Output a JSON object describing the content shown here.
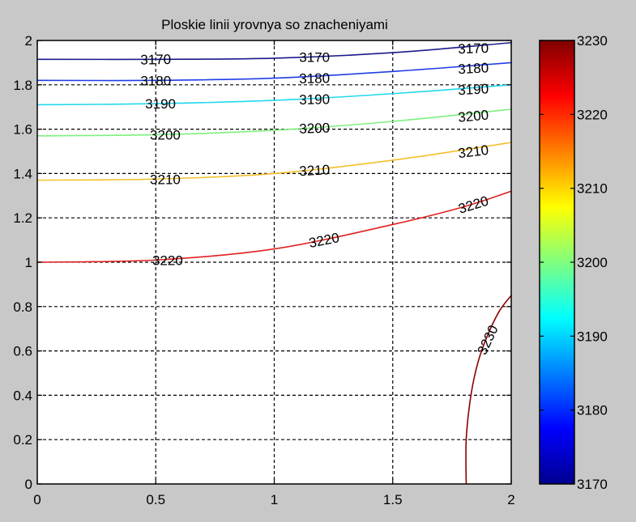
{
  "chart_data": {
    "type": "contour",
    "title": "Ploskie linii yrovnya so znacheniyami",
    "xlabel": "",
    "ylabel": "",
    "xlim": [
      0,
      2
    ],
    "ylim": [
      0,
      2
    ],
    "x_ticks": [
      "0",
      "0.5",
      "1",
      "1.5",
      "2"
    ],
    "y_ticks": [
      "0",
      "0.2",
      "0.4",
      "0.6",
      "0.8",
      "1",
      "1.2",
      "1.4",
      "1.6",
      "1.8",
      "2"
    ],
    "grid": true,
    "colormap": "jet",
    "colorbar": {
      "range": [
        3170,
        3230
      ],
      "ticks": [
        "3170",
        "3180",
        "3190",
        "3200",
        "3210",
        "3220",
        "3230"
      ],
      "placement": "right"
    },
    "levels": [
      {
        "level": "3170",
        "color": "#1a1a8c",
        "points": [
          [
            0,
            1.915
          ],
          [
            0.5,
            1.915
          ],
          [
            1,
            1.92
          ],
          [
            1.5,
            1.945
          ],
          [
            2,
            1.99
          ]
        ],
        "labels": [
          [
            0.5,
            1.915,
            -1
          ],
          [
            1.17,
            1.925,
            0
          ],
          [
            1.84,
            1.965,
            -2
          ]
        ]
      },
      {
        "level": "3180",
        "color": "#1f3de6",
        "points": [
          [
            0,
            1.82
          ],
          [
            0.5,
            1.82
          ],
          [
            1,
            1.83
          ],
          [
            1.5,
            1.86
          ],
          [
            2,
            1.9
          ]
        ],
        "labels": [
          [
            0.5,
            1.82,
            0
          ],
          [
            1.17,
            1.83,
            -1
          ],
          [
            1.84,
            1.875,
            -3
          ]
        ]
      },
      {
        "level": "3190",
        "color": "#22d8f0",
        "points": [
          [
            0,
            1.71
          ],
          [
            0.5,
            1.715
          ],
          [
            1,
            1.73
          ],
          [
            1.5,
            1.76
          ],
          [
            2,
            1.8
          ]
        ],
        "labels": [
          [
            0.52,
            1.715,
            0
          ],
          [
            1.17,
            1.735,
            -1
          ],
          [
            1.84,
            1.78,
            -3
          ]
        ]
      },
      {
        "level": "3200",
        "color": "#7ef07e",
        "points": [
          [
            0,
            1.57
          ],
          [
            0.5,
            1.575
          ],
          [
            1,
            1.595
          ],
          [
            1.5,
            1.635
          ],
          [
            2,
            1.69
          ]
        ],
        "labels": [
          [
            0.54,
            1.575,
            0
          ],
          [
            1.17,
            1.605,
            -2
          ],
          [
            1.84,
            1.66,
            -5
          ]
        ]
      },
      {
        "level": "3210",
        "color": "#f2c02a",
        "points": [
          [
            0,
            1.37
          ],
          [
            0.5,
            1.375
          ],
          [
            1,
            1.4
          ],
          [
            1.5,
            1.46
          ],
          [
            2,
            1.54
          ]
        ],
        "labels": [
          [
            0.54,
            1.375,
            0
          ],
          [
            1.17,
            1.415,
            -3
          ],
          [
            1.84,
            1.5,
            -7
          ]
        ]
      },
      {
        "level": "3220",
        "color": "#e02020",
        "points": [
          [
            0,
            1.0
          ],
          [
            0.5,
            1.01
          ],
          [
            1,
            1.06
          ],
          [
            1.5,
            1.17
          ],
          [
            1.8,
            1.25
          ],
          [
            2,
            1.32
          ]
        ],
        "labels": [
          [
            0.55,
            1.01,
            0
          ],
          [
            1.21,
            1.1,
            -11
          ],
          [
            1.84,
            1.26,
            -17
          ]
        ]
      },
      {
        "level": "3230",
        "color": "#8b0000",
        "points": [
          [
            1.81,
            0
          ],
          [
            1.81,
            0.2
          ],
          [
            1.83,
            0.4
          ],
          [
            1.86,
            0.55
          ],
          [
            1.9,
            0.67
          ],
          [
            1.95,
            0.78
          ],
          [
            2,
            0.85
          ]
        ],
        "labels": [
          [
            1.9,
            0.65,
            -65
          ]
        ]
      }
    ]
  }
}
